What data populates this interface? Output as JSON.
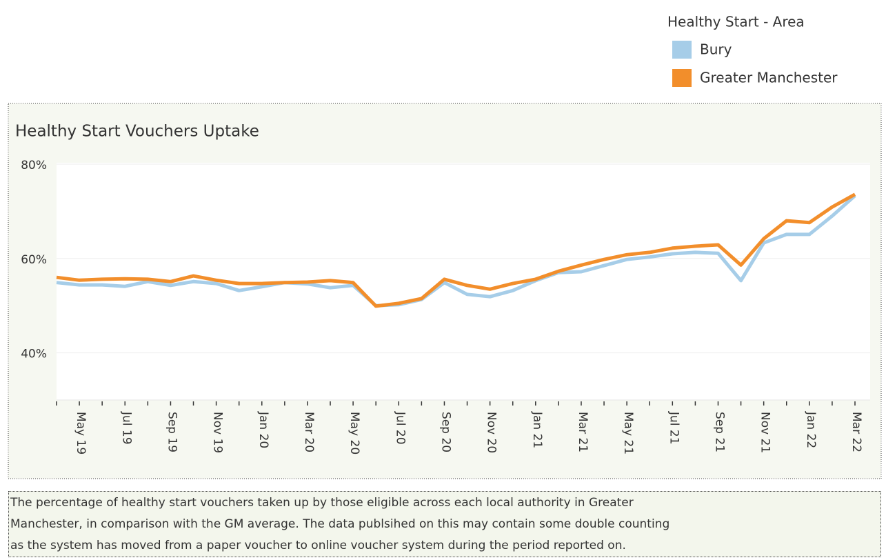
{
  "chart_data": {
    "type": "line",
    "title": "Healthy Start Vouchers Uptake",
    "legend_title": "Healthy Start - Area",
    "categories": [
      null,
      "May 19",
      null,
      "Jul 19",
      null,
      "Sep 19",
      null,
      "Nov 19",
      null,
      "Jan 20",
      null,
      "Mar 20",
      null,
      "May 20",
      null,
      "Jul 20",
      null,
      "Sep 20",
      null,
      "Nov 20",
      null,
      "Jan 21",
      null,
      "Mar 21",
      null,
      "May 21",
      null,
      "Jul 21",
      null,
      "Sep 21",
      null,
      "Nov 21",
      null,
      "Jan 22",
      null,
      "Mar 22"
    ],
    "series": [
      {
        "name": "Bury",
        "color": "#a6cde8",
        "values": [
          54.9,
          54.4,
          54.4,
          54.1,
          55.1,
          54.3,
          55.1,
          54.7,
          53.2,
          54.0,
          54.9,
          54.6,
          53.8,
          54.3,
          50.0,
          50.2,
          51.3,
          54.9,
          52.4,
          51.9,
          53.2,
          55.3,
          57.0,
          57.2,
          58.5,
          59.8,
          60.3,
          61.0,
          61.3,
          61.1,
          55.3,
          63.3,
          65.1,
          65.1,
          69.0,
          73.3
        ]
      },
      {
        "name": "Greater Manchester",
        "color": "#f28e2b",
        "values": [
          56.0,
          55.4,
          55.6,
          55.7,
          55.6,
          55.1,
          56.3,
          55.4,
          54.7,
          54.7,
          54.9,
          55.0,
          55.3,
          54.9,
          49.9,
          50.5,
          51.5,
          55.6,
          54.3,
          53.5,
          54.7,
          55.6,
          57.3,
          58.6,
          59.8,
          60.8,
          61.3,
          62.2,
          62.6,
          62.9,
          58.6,
          64.2,
          68.0,
          67.6,
          70.9,
          73.6
        ]
      }
    ],
    "ylim": [
      30,
      80
    ],
    "yticks": [
      {
        "value": 40,
        "label": "40%"
      },
      {
        "value": 60,
        "label": "60%"
      },
      {
        "value": 80,
        "label": "80%"
      }
    ],
    "grid": true
  },
  "footnote": {
    "lines": [
      "The percentage of healthy start vouchers taken up by those eligible across each local authority in Greater",
      "Manchester, in comparison with the GM average. The data publsihed on this may contain some double counting",
      "as the system has moved from a paper voucher to online voucher system during the period reported on."
    ]
  }
}
